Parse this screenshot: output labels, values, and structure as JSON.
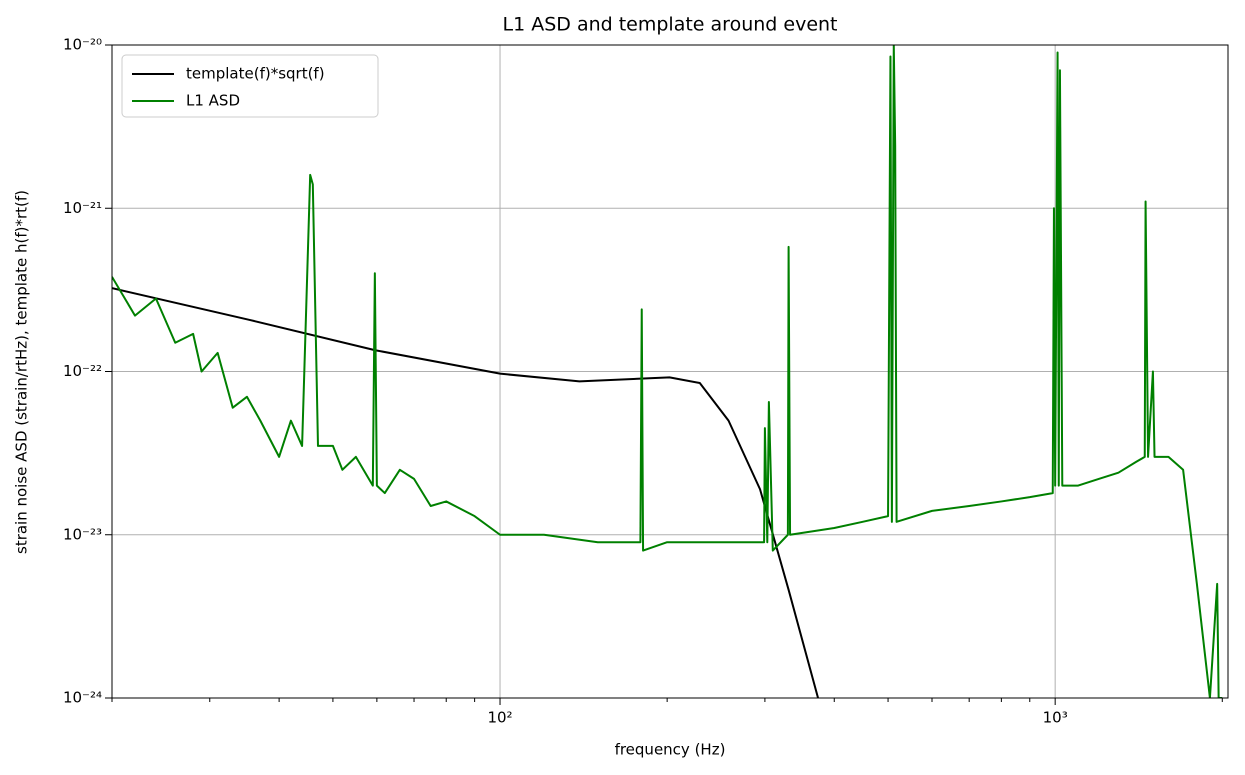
{
  "chart_data": {
    "type": "line",
    "title": "L1 ASD and template around event",
    "xlabel": "frequency (Hz)",
    "ylabel": "strain noise ASD (strain/rtHz), template h(f)*rt(f)",
    "xscale": "log",
    "yscale": "log",
    "xlim": [
      20,
      2048
    ],
    "ylim": [
      1e-24,
      1e-20
    ],
    "xticks": [
      {
        "value": 100,
        "label": "10²"
      },
      {
        "value": 1000,
        "label": "10³"
      }
    ],
    "xminorticks": [
      20,
      30,
      40,
      50,
      60,
      70,
      80,
      90,
      200,
      300,
      400,
      500,
      600,
      700,
      800,
      900,
      2000
    ],
    "yticks": [
      {
        "value": 1e-24,
        "label": "10⁻²⁴"
      },
      {
        "value": 1e-23,
        "label": "10⁻²³"
      },
      {
        "value": 1e-22,
        "label": "10⁻²²"
      },
      {
        "value": 1e-21,
        "label": "10⁻²¹"
      },
      {
        "value": 1e-20,
        "label": "10⁻²⁰"
      }
    ],
    "grid": true,
    "legend": "upper left",
    "series": [
      {
        "name": "template(f)*sqrt(f)",
        "color": "#000000",
        "x": [
          20,
          35.4,
          59.6,
          100,
          139,
          202,
          229,
          258,
          294,
          331,
          374
        ],
        "values": [
          3.24e-22,
          2.07e-22,
          1.35e-22,
          9.7e-23,
          8.7e-23,
          9.2e-23,
          8.5e-23,
          5e-23,
          1.9e-23,
          4.6e-24,
          1e-24
        ]
      },
      {
        "name": "L1 ASD",
        "color": "#008000",
        "x": [
          20,
          22,
          24,
          26,
          28,
          29,
          31,
          33,
          35,
          37,
          40,
          42,
          44,
          45.5,
          46,
          47,
          50,
          52,
          55,
          59,
          59.5,
          60,
          62,
          66,
          70,
          75,
          80,
          90,
          100,
          120,
          150,
          179,
          180,
          181,
          200,
          250,
          299,
          300,
          303,
          305,
          310,
          330,
          331,
          333,
          400,
          450,
          500,
          505,
          508,
          512,
          515,
          518,
          600,
          700,
          800,
          900,
          990,
          995,
          1000,
          1010,
          1015,
          1020,
          1030,
          1100,
          1200,
          1300,
          1400,
          1450,
          1455,
          1470,
          1500,
          1510,
          1600,
          1700,
          1800,
          1900,
          1958,
          1970,
          2000
        ],
        "values": [
          3.8e-22,
          2.2e-22,
          2.8e-22,
          1.5e-22,
          1.7e-22,
          1e-22,
          1.3e-22,
          6e-23,
          7e-23,
          5e-23,
          3e-23,
          5e-23,
          3.5e-23,
          1.6e-21,
          1.4e-21,
          3.5e-23,
          3.5e-23,
          2.5e-23,
          3e-23,
          2e-23,
          4e-22,
          2e-23,
          1.8e-23,
          2.5e-23,
          2.2e-23,
          1.5e-23,
          1.6e-23,
          1.3e-23,
          1e-23,
          1e-23,
          9e-24,
          9e-24,
          2.4e-22,
          8e-24,
          9e-24,
          9e-24,
          9e-24,
          4.5e-23,
          9e-24,
          6.5e-23,
          8e-24,
          1e-23,
          5.8e-22,
          1e-23,
          1.1e-23,
          1.2e-23,
          1.3e-23,
          8.5e-21,
          1.2e-23,
          1e-20,
          2.4e-21,
          1.2e-23,
          1.4e-23,
          1.5e-23,
          1.6e-23,
          1.7e-23,
          1.8e-23,
          1e-21,
          2e-23,
          9e-21,
          2e-23,
          7e-21,
          2e-23,
          2e-23,
          2.2e-23,
          2.4e-23,
          2.8e-23,
          3e-23,
          1.1e-21,
          3e-23,
          1e-22,
          3e-23,
          3e-23,
          2.5e-23,
          5e-24,
          1e-24,
          5e-24,
          1e-24,
          1e-24
        ]
      }
    ]
  }
}
